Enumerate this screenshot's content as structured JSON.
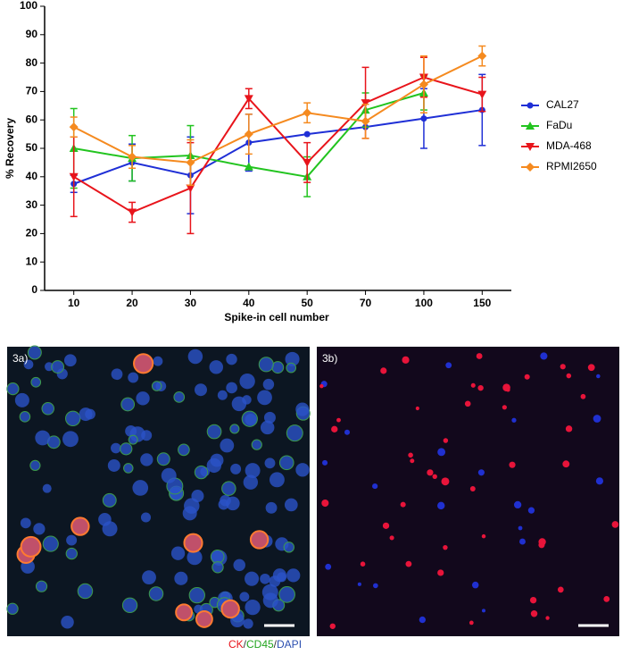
{
  "chart_data": {
    "type": "line",
    "x_label": "Spike-in cell number",
    "y_label": "% Recovery",
    "categories": [
      "10",
      "20",
      "30",
      "40",
      "50",
      "70",
      "100",
      "150"
    ],
    "ylim": [
      0,
      100
    ],
    "yticks": [
      0,
      10,
      20,
      30,
      40,
      50,
      60,
      70,
      80,
      90,
      100
    ],
    "grid": false,
    "legend": "right",
    "series": [
      {
        "name": "CAL27",
        "color": "#1f2fd6",
        "marker": "circle",
        "values": [
          37.5,
          45,
          40.5,
          52,
          55,
          57.5,
          60.5,
          63.5
        ],
        "errors": [
          3,
          6.5,
          13.5,
          10,
          null,
          null,
          10.5,
          12.5
        ]
      },
      {
        "name": "FaDu",
        "color": "#22c41f",
        "marker": "triangle-up",
        "values": [
          50,
          46.5,
          47.5,
          43.5,
          40,
          63.5,
          69.5,
          null
        ],
        "errors": [
          14,
          8,
          10.5,
          null,
          7,
          6,
          6,
          null
        ]
      },
      {
        "name": "MDA-468",
        "color": "#e8141b",
        "marker": "triangle-down",
        "values": [
          40,
          27.5,
          36,
          67.5,
          45,
          66,
          75,
          69
        ],
        "errors": [
          14,
          3.5,
          16,
          3.5,
          7,
          12.5,
          7,
          6
        ]
      },
      {
        "name": "RPMI2650",
        "color": "#f58a1f",
        "marker": "diamond",
        "values": [
          57.5,
          47,
          45,
          55,
          62.5,
          59.5,
          72.5,
          82.5
        ],
        "errors": [
          3.5,
          4,
          8,
          7,
          3.5,
          6,
          10,
          3.5
        ]
      }
    ]
  },
  "panels": [
    {
      "label": "3a)"
    },
    {
      "label": "3b)"
    }
  ],
  "caption": [
    "CK",
    "/",
    "CD45",
    "/",
    "DAPI"
  ]
}
